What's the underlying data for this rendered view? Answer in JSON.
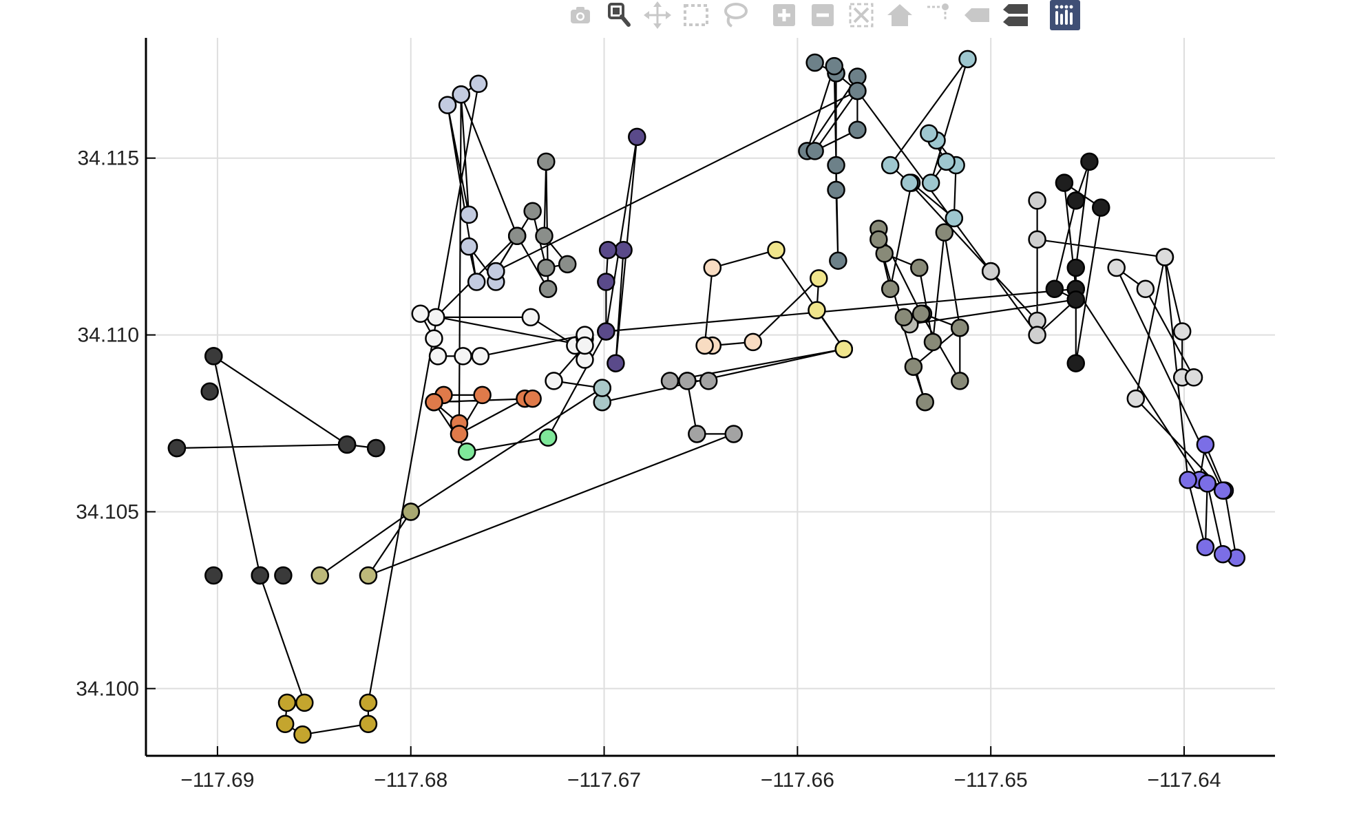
{
  "modebar": {
    "buttons": [
      {
        "name": "camera-icon",
        "active": false
      },
      {
        "name": "zoom-icon",
        "active": true
      },
      {
        "name": "pan-icon",
        "active": false
      },
      {
        "name": "box-select-icon",
        "active": false
      },
      {
        "name": "lasso-select-icon",
        "active": false
      },
      {
        "name": "zoom-in-icon",
        "active": false
      },
      {
        "name": "zoom-out-icon",
        "active": false
      },
      {
        "name": "autoscale-icon",
        "active": false
      },
      {
        "name": "reset-axes-icon",
        "active": false
      },
      {
        "name": "spike-lines-icon",
        "active": false
      },
      {
        "name": "hover-closest-icon",
        "active": false
      },
      {
        "name": "hover-compare-icon",
        "active": false
      },
      {
        "name": "plotly-logo-icon",
        "active": false
      }
    ],
    "colors": {
      "inactive": "#c8c8c8",
      "active": "#4a4a4a",
      "dark": "#4a4a4a",
      "logo_bg": "#3f4f75"
    }
  },
  "chart_data": {
    "type": "scatter",
    "mode": "lines+markers",
    "title": "",
    "xlabel": "",
    "ylabel": "",
    "xlim": [
      -117.6937,
      -117.6353
    ],
    "ylim": [
      34.0981,
      34.1184
    ],
    "xticks": [
      -117.69,
      -117.68,
      -117.67,
      -117.66,
      -117.65,
      -117.64
    ],
    "xtick_labels": [
      "−117.69",
      "−117.68",
      "−117.67",
      "−117.66",
      "−117.65",
      "−117.64"
    ],
    "yticks": [
      34.1,
      34.105,
      34.11,
      34.115
    ],
    "ytick_labels": [
      "34.100",
      "34.105",
      "34.110",
      "34.115"
    ],
    "grid": true,
    "legend": false,
    "line_color": "#000000",
    "path": [
      {
        "x": -117.6921,
        "y": 34.1068,
        "c": "#3a3a3a"
      },
      {
        "x": -117.6833,
        "y": 34.1069,
        "c": "#3a3a3a"
      },
      {
        "x": -117.6818,
        "y": 34.1068,
        "c": "#3a3a3a"
      },
      {
        "x": -117.6833,
        "y": 34.1069,
        "c": "#3a3a3a"
      },
      {
        "x": -117.6902,
        "y": 34.1094,
        "c": "#3a3a3a"
      },
      {
        "x": -117.6878,
        "y": 34.1032,
        "c": "#3a3a3a"
      },
      {
        "x": -117.6855,
        "y": 34.0996,
        "c": "#c4a52e"
      },
      {
        "x": -117.6864,
        "y": 34.0996,
        "c": "#c4a52e"
      },
      {
        "x": -117.6865,
        "y": 34.099,
        "c": "#c4a52e"
      },
      {
        "x": -117.6856,
        "y": 34.0987,
        "c": "#c4a52e"
      },
      {
        "x": -117.6822,
        "y": 34.099,
        "c": "#c4a52e"
      },
      {
        "x": -117.6822,
        "y": 34.0996,
        "c": "#c4a52e"
      },
      {
        "x": -117.6765,
        "y": 34.1171,
        "c": "#c3cbe0"
      },
      {
        "x": -117.6774,
        "y": 34.1168,
        "c": "#c3cbe0"
      },
      {
        "x": -117.677,
        "y": 34.1134,
        "c": "#c3cbe0"
      },
      {
        "x": -117.6781,
        "y": 34.1165,
        "c": "#c3cbe0"
      },
      {
        "x": -117.6766,
        "y": 34.1115,
        "c": "#c3cbe0"
      },
      {
        "x": -117.677,
        "y": 34.1125,
        "c": "#c3cbe0"
      },
      {
        "x": -117.6756,
        "y": 34.1115,
        "c": "#c3cbe0"
      },
      {
        "x": -117.6756,
        "y": 34.1118,
        "c": "#c3cbe0"
      },
      {
        "x": -117.6745,
        "y": 34.1128,
        "c": "#c3cbe0"
      },
      {
        "x": -117.6774,
        "y": 34.1168,
        "c": "#c3cbe0"
      },
      {
        "x": -117.6775,
        "y": 34.1075,
        "c": "#df7a4a"
      },
      {
        "x": -117.6788,
        "y": 34.1081,
        "c": "#df7a4a"
      },
      {
        "x": -117.6783,
        "y": 34.1083,
        "c": "#df7a4a"
      },
      {
        "x": -117.6763,
        "y": 34.1083,
        "c": "#df7a4a"
      },
      {
        "x": -117.6775,
        "y": 34.1072,
        "c": "#df7a4a"
      },
      {
        "x": -117.6741,
        "y": 34.1082,
        "c": "#df7a4a"
      },
      {
        "x": -117.6737,
        "y": 34.1082,
        "c": "#df7a4a"
      },
      {
        "x": -117.6788,
        "y": 34.1081,
        "c": "#df7a4a"
      },
      {
        "x": -117.6771,
        "y": 34.1067,
        "c": "#7fe89a"
      },
      {
        "x": -117.6729,
        "y": 34.1071,
        "c": "#7fe89a"
      },
      {
        "x": -117.6699,
        "y": 34.1101,
        "c": "#5a4a8a"
      },
      {
        "x": -117.6683,
        "y": 34.1156,
        "c": "#5a4a8a"
      },
      {
        "x": -117.6694,
        "y": 34.1092,
        "c": "#5a4a8a"
      },
      {
        "x": -117.669,
        "y": 34.1124,
        "c": "#5a4a8a"
      },
      {
        "x": -117.6698,
        "y": 34.1124,
        "c": "#5a4a8a"
      },
      {
        "x": -117.6699,
        "y": 34.1115,
        "c": "#5a4a8a"
      },
      {
        "x": -117.6699,
        "y": 34.1101,
        "c": "#5a4a8a"
      },
      {
        "x": -117.6456,
        "y": 34.1113,
        "c": "#1e1e1e"
      },
      {
        "x": -117.6456,
        "y": 34.1119,
        "c": "#1e1e1e"
      },
      {
        "x": -117.6449,
        "y": 34.1149,
        "c": "#1e1e1e"
      },
      {
        "x": -117.6456,
        "y": 34.1138,
        "c": "#1e1e1e"
      },
      {
        "x": -117.6467,
        "y": 34.1113,
        "c": "#1e1e1e"
      },
      {
        "x": -117.6456,
        "y": 34.111,
        "c": "#1e1e1e"
      },
      {
        "x": -117.6456,
        "y": 34.1092,
        "c": "#1e1e1e"
      },
      {
        "x": -117.6443,
        "y": 34.1136,
        "c": "#1e1e1e"
      },
      {
        "x": -117.6462,
        "y": 34.1143,
        "c": "#1e1e1e"
      },
      {
        "x": -117.6456,
        "y": 34.1113,
        "c": "#1e1e1e"
      },
      {
        "x": -117.6392,
        "y": 34.1059,
        "c": "#7b6ee6"
      },
      {
        "x": -117.6389,
        "y": 34.1069,
        "c": "#7b6ee6"
      },
      {
        "x": -117.6379,
        "y": 34.1056,
        "c": "#7b6ee6"
      },
      {
        "x": -117.6373,
        "y": 34.1037,
        "c": "#7b6ee6"
      },
      {
        "x": -117.638,
        "y": 34.1038,
        "c": "#7b6ee6"
      },
      {
        "x": -117.6388,
        "y": 34.1058,
        "c": "#7b6ee6"
      },
      {
        "x": -117.6389,
        "y": 34.104,
        "c": "#7b6ee6"
      },
      {
        "x": -117.6398,
        "y": 34.1059,
        "c": "#7b6ee6"
      },
      {
        "x": -117.641,
        "y": 34.1122,
        "c": "#dcdcdc"
      },
      {
        "x": -117.6401,
        "y": 34.1101,
        "c": "#dcdcdc"
      },
      {
        "x": -117.6401,
        "y": 34.1088,
        "c": "#dcdcdc"
      },
      {
        "x": -117.6395,
        "y": 34.1088,
        "c": "#dcdcdc"
      },
      {
        "x": -117.642,
        "y": 34.1113,
        "c": "#dcdcdc"
      },
      {
        "x": -117.6435,
        "y": 34.1119,
        "c": "#dcdcdc"
      },
      {
        "x": -117.638,
        "y": 34.1056,
        "c": "#7b6ee6"
      },
      {
        "x": -117.6425,
        "y": 34.1082,
        "c": "#dcdcdc"
      },
      {
        "x": -117.641,
        "y": 34.1122,
        "c": "#dcdcdc"
      },
      {
        "x": -117.6476,
        "y": 34.1127,
        "c": "#cfcfcf"
      },
      {
        "x": -117.6476,
        "y": 34.1138,
        "c": "#cfcfcf"
      },
      {
        "x": -117.6476,
        "y": 34.1104,
        "c": "#cfcfcf"
      },
      {
        "x": -117.65,
        "y": 34.1118,
        "c": "#cfcfcf"
      },
      {
        "x": -117.6476,
        "y": 34.11,
        "c": "#cfcfcf"
      },
      {
        "x": -117.6456,
        "y": 34.111,
        "c": "#1e1e1e"
      },
      {
        "x": -117.6542,
        "y": 34.1103,
        "c": "#b9bab2"
      },
      {
        "x": -117.6545,
        "y": 34.1105,
        "c": "#888a78"
      },
      {
        "x": -117.6535,
        "y": 34.1106,
        "c": "#888a78"
      },
      {
        "x": -117.6516,
        "y": 34.1102,
        "c": "#888a78"
      },
      {
        "x": -117.6516,
        "y": 34.1087,
        "c": "#888a78"
      },
      {
        "x": -117.6536,
        "y": 34.1106,
        "c": "#888a78"
      },
      {
        "x": -117.6558,
        "y": 34.113,
        "c": "#888a78"
      },
      {
        "x": -117.6555,
        "y": 34.1123,
        "c": "#888a78"
      },
      {
        "x": -117.6537,
        "y": 34.1119,
        "c": "#888a78"
      },
      {
        "x": -117.653,
        "y": 34.1098,
        "c": "#888a78"
      },
      {
        "x": -117.6524,
        "y": 34.1129,
        "c": "#888a78"
      },
      {
        "x": -117.6516,
        "y": 34.1102,
        "c": "#888a78"
      },
      {
        "x": -117.654,
        "y": 34.1091,
        "c": "#888a78"
      },
      {
        "x": -117.6534,
        "y": 34.1081,
        "c": "#888a78"
      },
      {
        "x": -117.6558,
        "y": 34.1127,
        "c": "#888a78"
      },
      {
        "x": -117.6552,
        "y": 34.1113,
        "c": "#888a78"
      },
      {
        "x": -117.6541,
        "y": 34.1143,
        "c": "#9ec7cf"
      },
      {
        "x": -117.6519,
        "y": 34.1133,
        "c": "#9ec7cf"
      },
      {
        "x": -117.6518,
        "y": 34.1148,
        "c": "#9ec7cf"
      },
      {
        "x": -117.6528,
        "y": 34.1155,
        "c": "#9ec7cf"
      },
      {
        "x": -117.6532,
        "y": 34.1157,
        "c": "#9ec7cf"
      },
      {
        "x": -117.6523,
        "y": 34.1149,
        "c": "#9ec7cf"
      },
      {
        "x": -117.6531,
        "y": 34.1143,
        "c": "#9ec7cf"
      },
      {
        "x": -117.6512,
        "y": 34.1178,
        "c": "#9ec7cf"
      },
      {
        "x": -117.6552,
        "y": 34.1148,
        "c": "#9ec7cf"
      },
      {
        "x": -117.6542,
        "y": 34.1143,
        "c": "#9ec7cf"
      },
      {
        "x": -117.65,
        "y": 34.1118,
        "c": "#cfcfcf"
      },
      {
        "x": -117.6569,
        "y": 34.1169,
        "c": "#6d8189"
      },
      {
        "x": -117.658,
        "y": 34.1174,
        "c": "#6d8189"
      },
      {
        "x": -117.6591,
        "y": 34.1177,
        "c": "#6d8189"
      },
      {
        "x": -117.658,
        "y": 34.1174,
        "c": "#6d8189"
      },
      {
        "x": -117.658,
        "y": 34.1148,
        "c": "#6d8189"
      },
      {
        "x": -117.658,
        "y": 34.1141,
        "c": "#6d8189"
      },
      {
        "x": -117.6579,
        "y": 34.1121,
        "c": "#6d8189"
      },
      {
        "x": -117.6581,
        "y": 34.1176,
        "c": "#6d8189"
      },
      {
        "x": -117.6595,
        "y": 34.1152,
        "c": "#6d8189"
      },
      {
        "x": -117.6569,
        "y": 34.1173,
        "c": "#6d8189"
      },
      {
        "x": -117.6569,
        "y": 34.1158,
        "c": "#6d8189"
      },
      {
        "x": -117.6591,
        "y": 34.1152,
        "c": "#6d8189"
      },
      {
        "x": -117.6569,
        "y": 34.1169,
        "c": "#6d8189"
      },
      {
        "x": -117.6756,
        "y": 34.1118,
        "c": "#c3cbe0"
      },
      {
        "x": -117.6737,
        "y": 34.1135,
        "c": "#8a8e8a"
      },
      {
        "x": -117.673,
        "y": 34.1119,
        "c": "#8a8e8a"
      },
      {
        "x": -117.6719,
        "y": 34.112,
        "c": "#8a8e8a"
      },
      {
        "x": -117.6731,
        "y": 34.1128,
        "c": "#8a8e8a"
      },
      {
        "x": -117.673,
        "y": 34.1149,
        "c": "#8a8e8a"
      },
      {
        "x": -117.6729,
        "y": 34.1113,
        "c": "#8a8e8a"
      },
      {
        "x": -117.6745,
        "y": 34.1128,
        "c": "#8a8e8a"
      },
      {
        "x": -117.6787,
        "y": 34.1105,
        "c": "#f4f4f4"
      },
      {
        "x": -117.6738,
        "y": 34.1105,
        "c": "#f4f4f4"
      },
      {
        "x": -117.6715,
        "y": 34.1097,
        "c": "#f4f4f4"
      },
      {
        "x": -117.671,
        "y": 34.1099,
        "c": "#f4f4f4"
      },
      {
        "x": -117.671,
        "y": 34.1093,
        "c": "#f4f4f4"
      },
      {
        "x": -117.671,
        "y": 34.11,
        "c": "#f4f4f4"
      },
      {
        "x": -117.6764,
        "y": 34.1094,
        "c": "#f4f4f4"
      },
      {
        "x": -117.6773,
        "y": 34.1094,
        "c": "#f4f4f4"
      },
      {
        "x": -117.6786,
        "y": 34.1094,
        "c": "#f4f4f4"
      },
      {
        "x": -117.6788,
        "y": 34.1099,
        "c": "#f4f4f4"
      },
      {
        "x": -117.6795,
        "y": 34.1106,
        "c": "#f4f4f4"
      },
      {
        "x": -117.671,
        "y": 34.1097,
        "c": "#f4f4f4"
      },
      {
        "x": -117.6726,
        "y": 34.1087,
        "c": "#f4f4f4"
      },
      {
        "x": -117.6701,
        "y": 34.1085,
        "c": "#a9c8c8"
      },
      {
        "x": -117.6701,
        "y": 34.1081,
        "c": "#a9c8c8"
      },
      {
        "x": -117.6576,
        "y": 34.1096,
        "c": "#f0e58c"
      },
      {
        "x": -117.659,
        "y": 34.1107,
        "c": "#f0e58c"
      },
      {
        "x": -117.6589,
        "y": 34.1116,
        "c": "#f0e58c"
      },
      {
        "x": -117.6623,
        "y": 34.1098,
        "c": "#f8dcc2"
      },
      {
        "x": -117.6644,
        "y": 34.1097,
        "c": "#f8dcc2"
      },
      {
        "x": -117.6648,
        "y": 34.1097,
        "c": "#f8dcc2"
      },
      {
        "x": -117.6644,
        "y": 34.1119,
        "c": "#f8dcc2"
      },
      {
        "x": -117.6611,
        "y": 34.1124,
        "c": "#f0e58c"
      },
      {
        "x": -117.6576,
        "y": 34.1096,
        "c": "#f0e58c"
      },
      {
        "x": -117.6666,
        "y": 34.1087,
        "c": "#a3a3a3"
      },
      {
        "x": -117.6657,
        "y": 34.1087,
        "c": "#a3a3a3"
      },
      {
        "x": -117.6646,
        "y": 34.1087,
        "c": "#a3a3a3"
      },
      {
        "x": -117.6657,
        "y": 34.1087,
        "c": "#a3a3a3"
      },
      {
        "x": -117.6652,
        "y": 34.1072,
        "c": "#a3a3a3"
      },
      {
        "x": -117.6633,
        "y": 34.1072,
        "c": "#a3a3a3"
      },
      {
        "x": -117.6822,
        "y": 34.1032,
        "c": "#bdb97a"
      },
      {
        "x": -117.68,
        "y": 34.105,
        "c": "#a8a871"
      },
      {
        "x": -117.6847,
        "y": 34.1032,
        "c": "#bdb97a"
      },
      {
        "x": -117.68,
        "y": 34.105,
        "c": "#a8a871"
      },
      {
        "x": -117.6701,
        "y": 34.1085,
        "c": "#a9c8c8"
      }
    ],
    "points": [
      {
        "x": -117.6921,
        "y": 34.1068,
        "c": "#3a3a3a"
      },
      {
        "x": -117.6833,
        "y": 34.1069,
        "c": "#3a3a3a"
      },
      {
        "x": -117.6818,
        "y": 34.1068,
        "c": "#3a3a3a"
      },
      {
        "x": -117.6902,
        "y": 34.1094,
        "c": "#3a3a3a"
      },
      {
        "x": -117.6904,
        "y": 34.1084,
        "c": "#3a3a3a"
      },
      {
        "x": -117.6902,
        "y": 34.1032,
        "c": "#3a3a3a"
      },
      {
        "x": -117.6878,
        "y": 34.1032,
        "c": "#3a3a3a"
      },
      {
        "x": -117.6866,
        "y": 34.1032,
        "c": "#3a3a3a"
      }
    ]
  }
}
